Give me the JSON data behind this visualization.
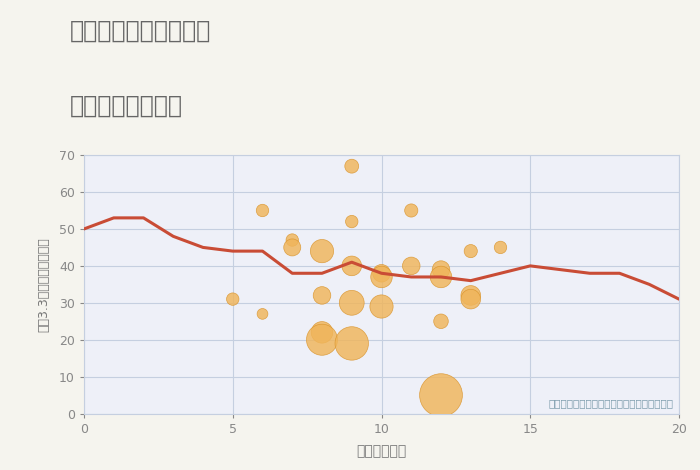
{
  "title_line1": "奈良県奈良市学園南の",
  "title_line2": "駅距離別土地価格",
  "xlabel": "駅距離（分）",
  "ylabel": "坪（3.3㎡）単価（万円）",
  "annotation": "円の大きさは、取引のあった物件面積を示す",
  "xlim": [
    0,
    20
  ],
  "ylim": [
    0,
    70
  ],
  "xticks": [
    0,
    5,
    10,
    15,
    20
  ],
  "yticks": [
    0,
    10,
    20,
    30,
    40,
    50,
    60,
    70
  ],
  "background_color": "#f5f4ee",
  "plot_bg_color": "#eef0f8",
  "grid_color": "#c5cfe0",
  "bubble_color": "#f0b55a",
  "bubble_edge_color": "#d9932a",
  "bubble_alpha": 0.82,
  "line_color": "#c94c35",
  "title_color": "#666666",
  "annotation_color": "#7a9aaa",
  "scatter_x": [
    5,
    6,
    6,
    7,
    7,
    8,
    8,
    8,
    8,
    9,
    9,
    9,
    9,
    9,
    10,
    10,
    10,
    11,
    11,
    12,
    12,
    12,
    13,
    13,
    13,
    14,
    12
  ],
  "scatter_y": [
    31,
    27,
    55,
    47,
    45,
    44,
    32,
    22,
    20,
    67,
    52,
    40,
    30,
    19,
    38,
    37,
    29,
    55,
    40,
    39,
    37,
    25,
    44,
    32,
    31,
    45,
    5
  ],
  "scatter_size": [
    80,
    60,
    80,
    80,
    150,
    280,
    160,
    240,
    500,
    100,
    80,
    200,
    320,
    580,
    160,
    240,
    280,
    90,
    160,
    160,
    240,
    110,
    90,
    200,
    200,
    80,
    950
  ],
  "line_x": [
    0,
    1,
    2,
    3,
    4,
    5,
    6,
    7,
    8,
    9,
    10,
    11,
    12,
    13,
    14,
    15,
    16,
    17,
    18,
    19,
    20
  ],
  "line_y": [
    50,
    53,
    53,
    48,
    45,
    44,
    44,
    38,
    38,
    41,
    38,
    37,
    37,
    36,
    38,
    40,
    39,
    38,
    38,
    35,
    31
  ]
}
